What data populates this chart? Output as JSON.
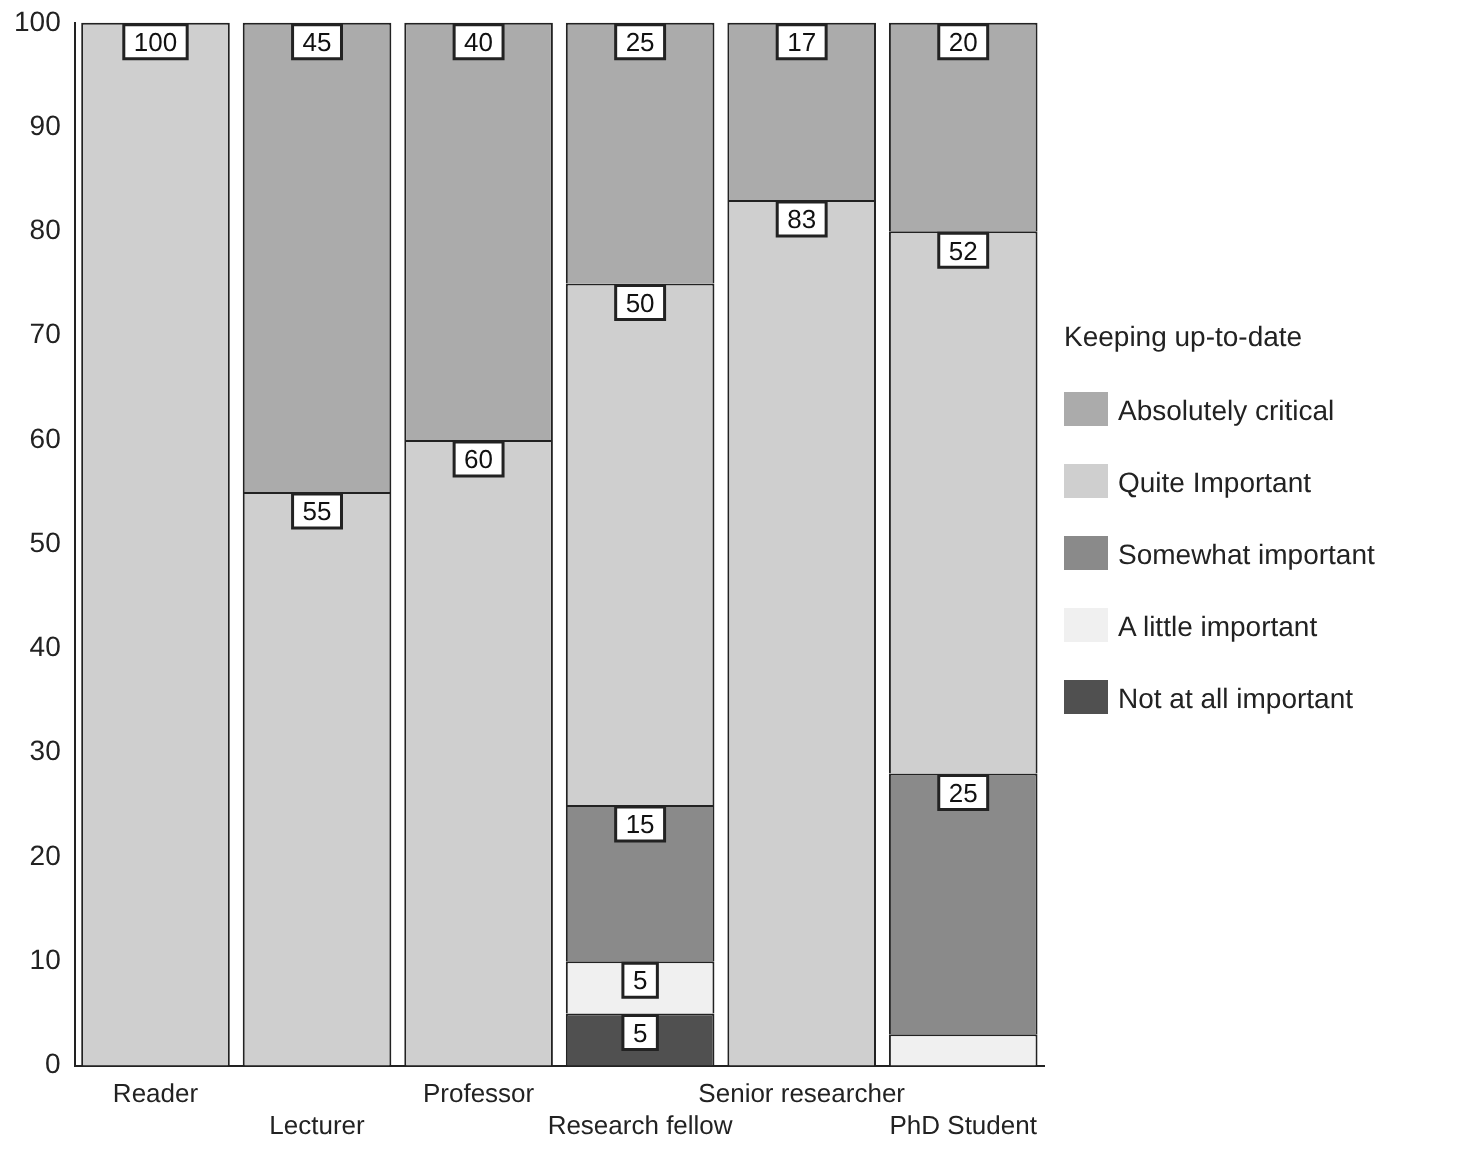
{
  "chart_data": {
    "type": "bar",
    "stacked": true,
    "legend": "right",
    "legend_title": "Keeping up-to-date",
    "grid": false,
    "categories": [
      "Reader",
      "Lecturer",
      "Professor",
      "Research fellow",
      "Senior researcher",
      "PhD Student"
    ],
    "ylim": [
      0,
      100
    ],
    "yticks": [
      0,
      10,
      20,
      30,
      40,
      50,
      60,
      70,
      80,
      90,
      100
    ],
    "series": [
      {
        "name": "Not at all important",
        "color": "#505050",
        "values": [
          0,
          0,
          0,
          5,
          0,
          0
        ],
        "value_labels": [
          null,
          null,
          null,
          "5",
          null,
          null
        ]
      },
      {
        "name": "A little important",
        "color": "#f0f0f0",
        "values": [
          0,
          0,
          0,
          5,
          0,
          3
        ],
        "value_labels": [
          null,
          null,
          null,
          "5",
          null,
          null
        ]
      },
      {
        "name": "Somewhat important",
        "color": "#8a8a8a",
        "values": [
          0,
          0,
          0,
          15,
          0,
          25
        ],
        "value_labels": [
          null,
          null,
          null,
          "15",
          null,
          "25"
        ]
      },
      {
        "name": "Quite Important",
        "color": "#cfcfcf",
        "values": [
          100,
          55,
          60,
          50,
          83,
          52
        ],
        "value_labels": [
          "100",
          "55",
          "60",
          "50",
          "83",
          "52"
        ]
      },
      {
        "name": "Absolutely critical",
        "color": "#ababab",
        "values": [
          0,
          45,
          40,
          25,
          17,
          20
        ],
        "value_labels": [
          null,
          "45",
          "40",
          "25",
          "17",
          "20"
        ]
      }
    ]
  }
}
